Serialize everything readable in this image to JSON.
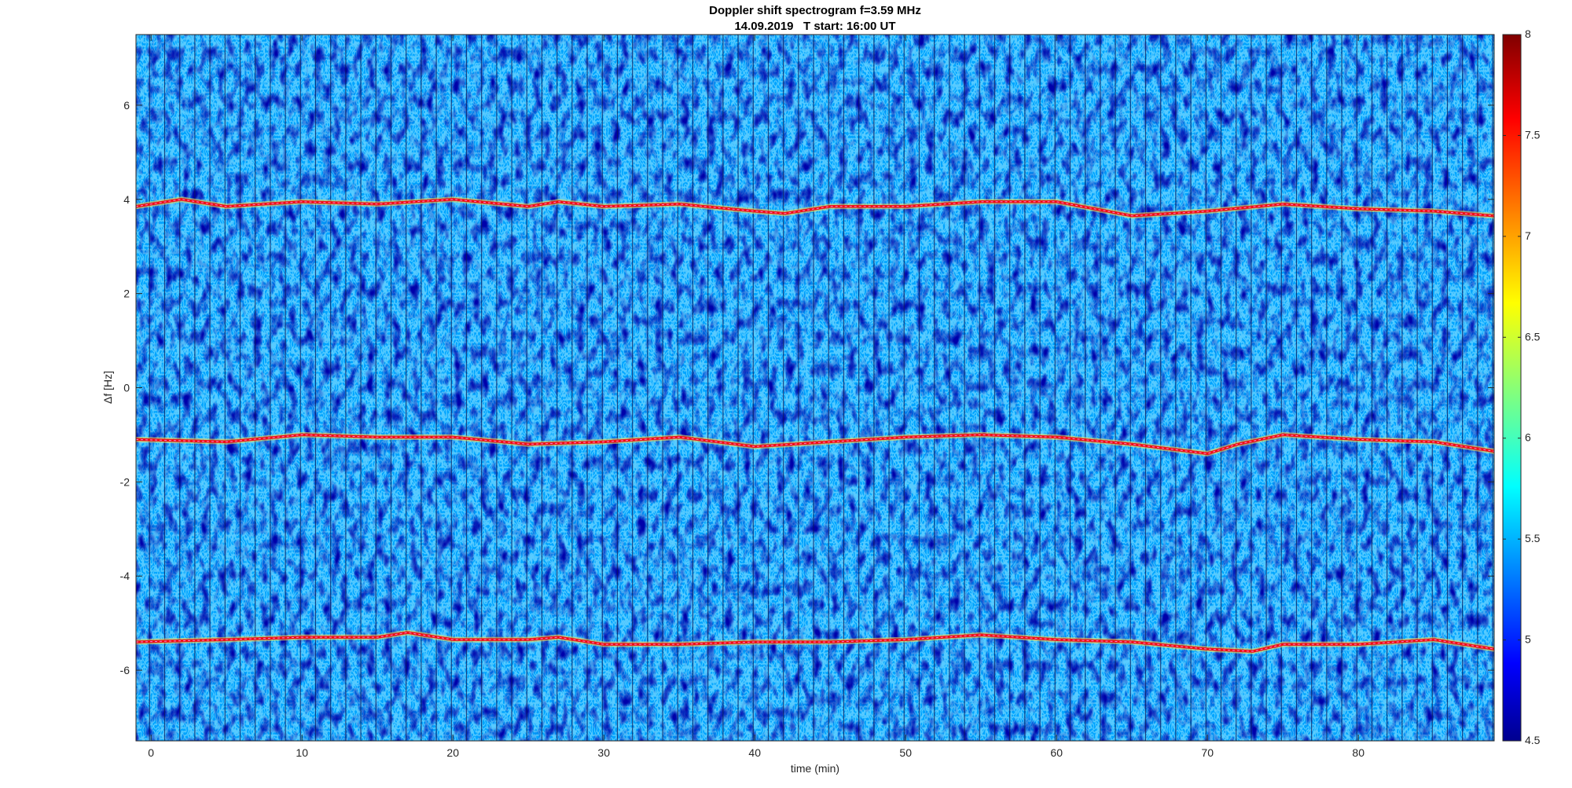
{
  "chart_data": {
    "type": "heatmap",
    "title": "Doppler shift spectrogram f=3.59 MHz",
    "subtitle": "14.09.2019   T start: 16:00 UT",
    "xlabel": "time (min)",
    "ylabel": "Δf [Hz]",
    "xlim": [
      -1,
      89
    ],
    "ylim": [
      -7.5,
      7.5
    ],
    "x_ticks": [
      0,
      10,
      20,
      30,
      40,
      50,
      60,
      70,
      80
    ],
    "y_ticks": [
      -6,
      -4,
      -2,
      0,
      2,
      4,
      6
    ],
    "colorbar": {
      "colormap": "jet",
      "clim": [
        4.5,
        8
      ],
      "ticks": [
        4.5,
        5,
        5.5,
        6,
        6.5,
        7,
        7.5,
        8
      ]
    },
    "background_level": 5.5,
    "series": [
      {
        "x": [
          -1,
          2,
          5,
          10,
          15,
          20,
          25,
          27,
          30,
          35,
          40,
          42,
          45,
          50,
          55,
          60,
          65,
          70,
          75,
          80,
          85,
          89
        ],
        "values": [
          3.85,
          4.0,
          3.85,
          3.95,
          3.9,
          4.0,
          3.85,
          3.95,
          3.85,
          3.9,
          3.75,
          3.7,
          3.85,
          3.85,
          3.95,
          3.95,
          3.65,
          3.75,
          3.9,
          3.8,
          3.75,
          3.65
        ]
      },
      {
        "x": [
          -1,
          5,
          10,
          15,
          20,
          25,
          30,
          35,
          40,
          45,
          50,
          55,
          60,
          65,
          70,
          72,
          75,
          80,
          85,
          89
        ],
        "values": [
          -1.1,
          -1.15,
          -1.0,
          -1.05,
          -1.05,
          -1.2,
          -1.15,
          -1.05,
          -1.25,
          -1.15,
          -1.05,
          -1.0,
          -1.05,
          -1.2,
          -1.4,
          -1.2,
          -1.0,
          -1.1,
          -1.15,
          -1.35
        ]
      },
      {
        "x": [
          -1,
          5,
          10,
          15,
          17,
          20,
          25,
          27,
          30,
          35,
          40,
          45,
          50,
          55,
          60,
          65,
          70,
          73,
          75,
          80,
          85,
          89
        ],
        "values": [
          -5.4,
          -5.35,
          -5.3,
          -5.3,
          -5.2,
          -5.35,
          -5.35,
          -5.3,
          -5.45,
          -5.45,
          -5.4,
          -5.4,
          -5.35,
          -5.25,
          -5.35,
          -5.4,
          -5.55,
          -5.6,
          -5.45,
          -5.45,
          -5.35,
          -5.55
        ]
      }
    ]
  }
}
